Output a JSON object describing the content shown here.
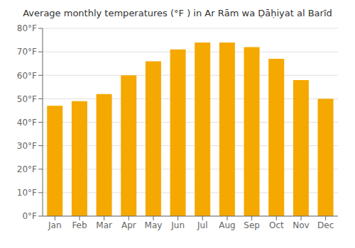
{
  "chart_data": {
    "type": "bar",
    "title": "Average monthly temperatures (°F ) in Ar Rām wa Ḍāḥiyat al Barīd",
    "categories": [
      "Jan",
      "Feb",
      "Mar",
      "Apr",
      "May",
      "Jun",
      "Jul",
      "Aug",
      "Sep",
      "Oct",
      "Nov",
      "Dec"
    ],
    "values": [
      47,
      49,
      52,
      60,
      66,
      71,
      74,
      74,
      72,
      67,
      58,
      50
    ],
    "color": "#F5A800",
    "ylim": [
      0,
      80
    ],
    "yticks": [
      {
        "value": 0,
        "label": "0°F"
      },
      {
        "value": 10,
        "label": "10°F"
      },
      {
        "value": 20,
        "label": "20°F"
      },
      {
        "value": 30,
        "label": "30°F"
      },
      {
        "value": 40,
        "label": "40°F"
      },
      {
        "value": 50,
        "label": "50°F"
      },
      {
        "value": 60,
        "label": "60°F"
      },
      {
        "value": 70,
        "label": "70°F"
      },
      {
        "value": 80,
        "label": "80°F"
      }
    ],
    "grid": true
  }
}
